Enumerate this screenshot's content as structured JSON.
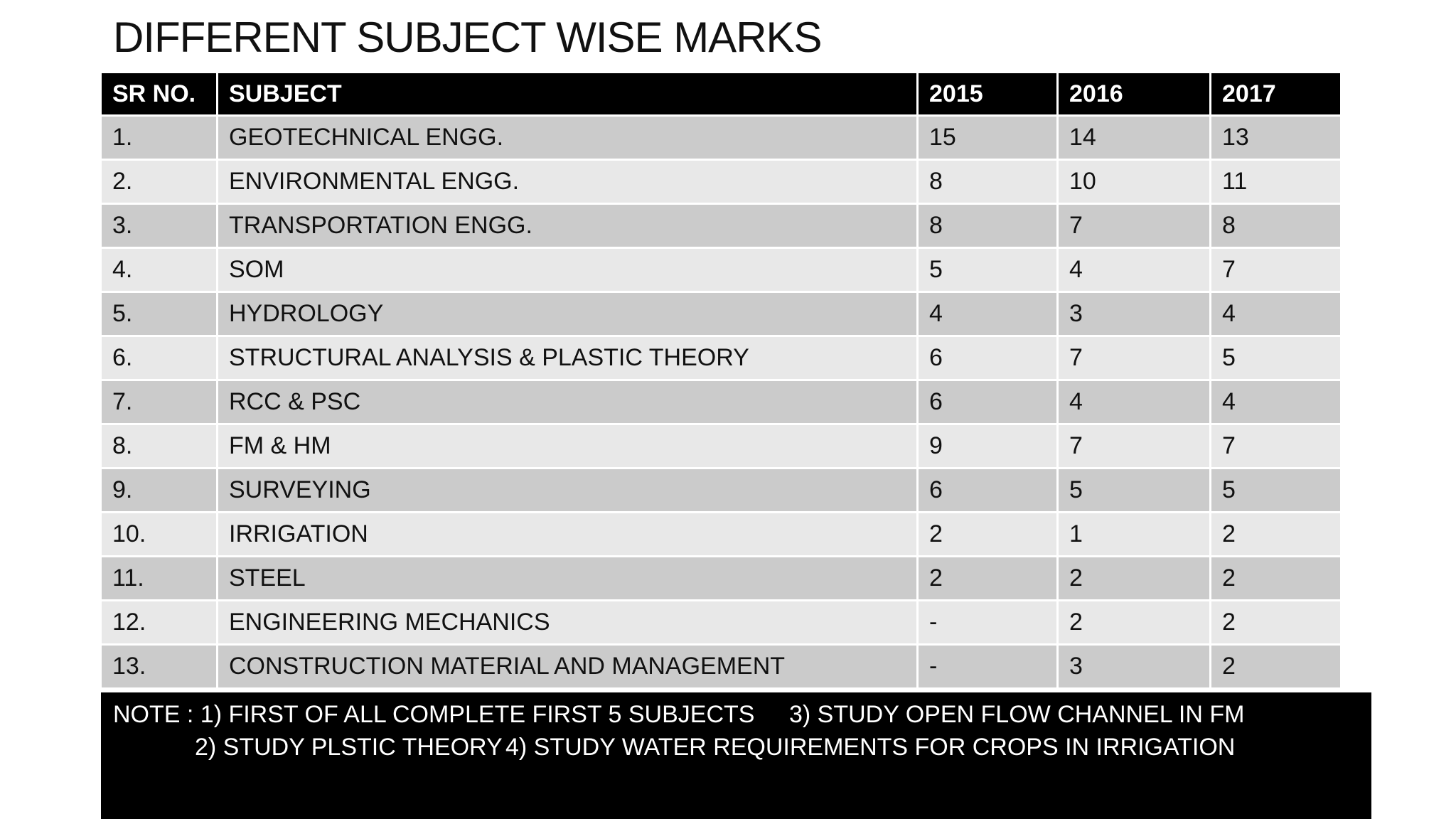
{
  "title": "DIFFERENT SUBJECT WISE MARKS",
  "table": {
    "header": [
      "SR NO.",
      "SUBJECT",
      "2015",
      "2016",
      "2017"
    ],
    "rows": [
      [
        "1.",
        "GEOTECHNICAL ENGG.",
        15,
        14,
        13
      ],
      [
        "2.",
        "ENVIRONMENTAL ENGG.",
        8,
        10,
        11
      ],
      [
        "3.",
        "TRANSPORTATION ENGG.",
        8,
        7,
        8
      ],
      [
        "4.",
        "SOM",
        5,
        4,
        7
      ],
      [
        "5.",
        "HYDROLOGY",
        4,
        3,
        4
      ],
      [
        "6.",
        "STRUCTURAL ANALYSIS & PLASTIC THEORY",
        6,
        7,
        5
      ],
      [
        "7.",
        "RCC & PSC",
        6,
        4,
        4
      ],
      [
        "8.",
        "FM & HM",
        9,
        7,
        7
      ],
      [
        "9.",
        "SURVEYING",
        6,
        5,
        5
      ],
      [
        "10.",
        "IRRIGATION",
        2,
        1,
        2
      ],
      [
        "11.",
        "STEEL",
        2,
        2,
        2
      ],
      [
        "12.",
        "ENGINEERING MECHANICS",
        "-",
        2,
        2
      ],
      [
        "13.",
        "CONSTRUCTION MATERIAL AND MANAGEMENT",
        "-",
        3,
        2
      ]
    ]
  },
  "note": [
    "NOTE : 1) FIRST OF ALL COMPLETE FIRST 5 SUBJECTS",
    "3) STUDY OPEN FLOW CHANNEL IN FM",
    "2) STUDY PLSTIC THEORY",
    "4) STUDY WATER REQUIREMENTS FOR CROPS IN IRRIGATION"
  ]
}
